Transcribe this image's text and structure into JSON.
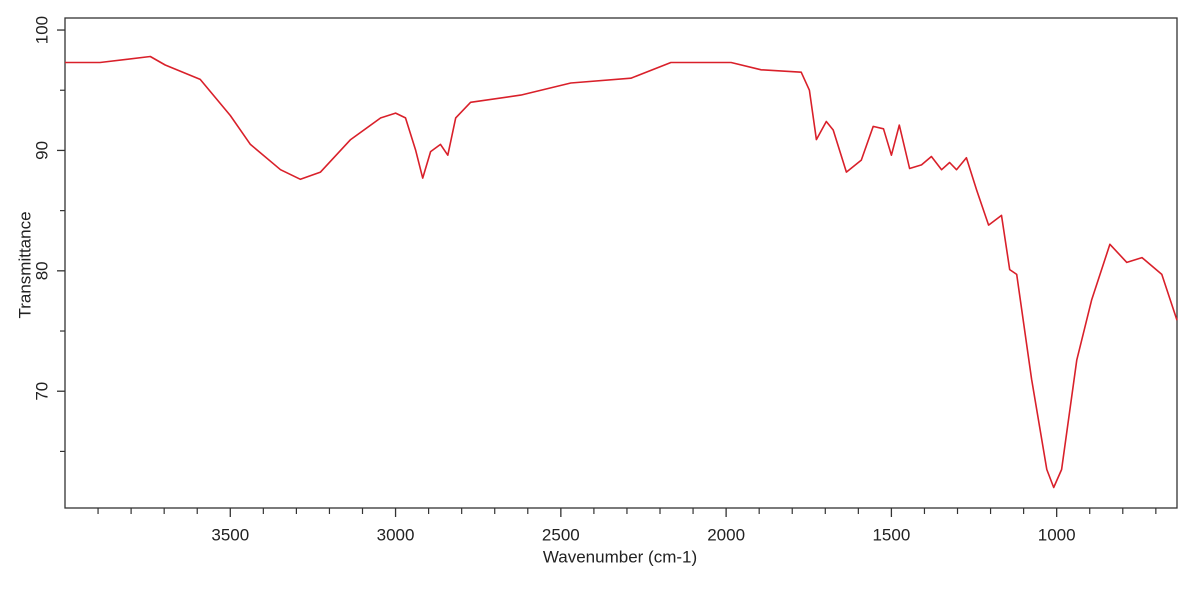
{
  "chart_data": {
    "type": "line",
    "xlabel": "Wavenumber (cm-1)",
    "ylabel": "Transmittance",
    "xlim": [
      4000,
      636
    ],
    "ylim": [
      60.3,
      101
    ],
    "xticks": [
      3500,
      3000,
      2500,
      2000,
      1500,
      1000
    ],
    "x_minor_ticks": [
      3900,
      3800,
      3700,
      3600,
      3400,
      3300,
      3200,
      3100,
      2900,
      2800,
      2700,
      2600,
      2400,
      2300,
      2200,
      2100,
      1900,
      1800,
      1700,
      1600,
      1400,
      1300,
      1200,
      1100,
      900,
      800,
      700
    ],
    "yticks": [
      70,
      80,
      90,
      {
        "value": 100,
        "label": "100"
      }
    ],
    "y_minor_ticks": [
      65,
      75,
      85,
      95
    ],
    "series": [
      {
        "color": "#d9202a",
        "x": [
          4000,
          3894,
          3742,
          3697,
          3591,
          3500,
          3439,
          3348,
          3288,
          3227,
          3136,
          3045,
          3000,
          2970,
          2939,
          2918,
          2894,
          2864,
          2842,
          2818,
          2773,
          2621,
          2470,
          2288,
          2167,
          2076,
          1985,
          1894,
          1773,
          1748,
          1727,
          1697,
          1676,
          1636,
          1591,
          1555,
          1524,
          1500,
          1476,
          1445,
          1409,
          1379,
          1348,
          1324,
          1303,
          1273,
          1242,
          1206,
          1167,
          1142,
          1121,
          1076,
          1030,
          1009,
          985,
          939,
          894,
          839,
          788,
          742,
          682,
          636
        ],
        "values": [
          97.3,
          97.3,
          97.8,
          97.1,
          95.9,
          92.9,
          90.5,
          88.4,
          87.6,
          88.2,
          90.9,
          92.7,
          93.1,
          92.7,
          90.0,
          87.7,
          89.9,
          90.5,
          89.6,
          92.7,
          94.0,
          94.6,
          95.6,
          96.0,
          97.3,
          97.3,
          97.3,
          96.7,
          96.5,
          95.0,
          90.9,
          92.4,
          91.7,
          88.2,
          89.2,
          92.0,
          91.8,
          89.6,
          92.1,
          88.5,
          88.8,
          89.5,
          88.4,
          89.0,
          88.4,
          89.4,
          86.7,
          83.8,
          84.6,
          80.1,
          79.7,
          71.0,
          63.5,
          62.0,
          63.5,
          72.6,
          77.6,
          82.2,
          80.7,
          81.1,
          79.7,
          75.9
        ]
      }
    ]
  }
}
